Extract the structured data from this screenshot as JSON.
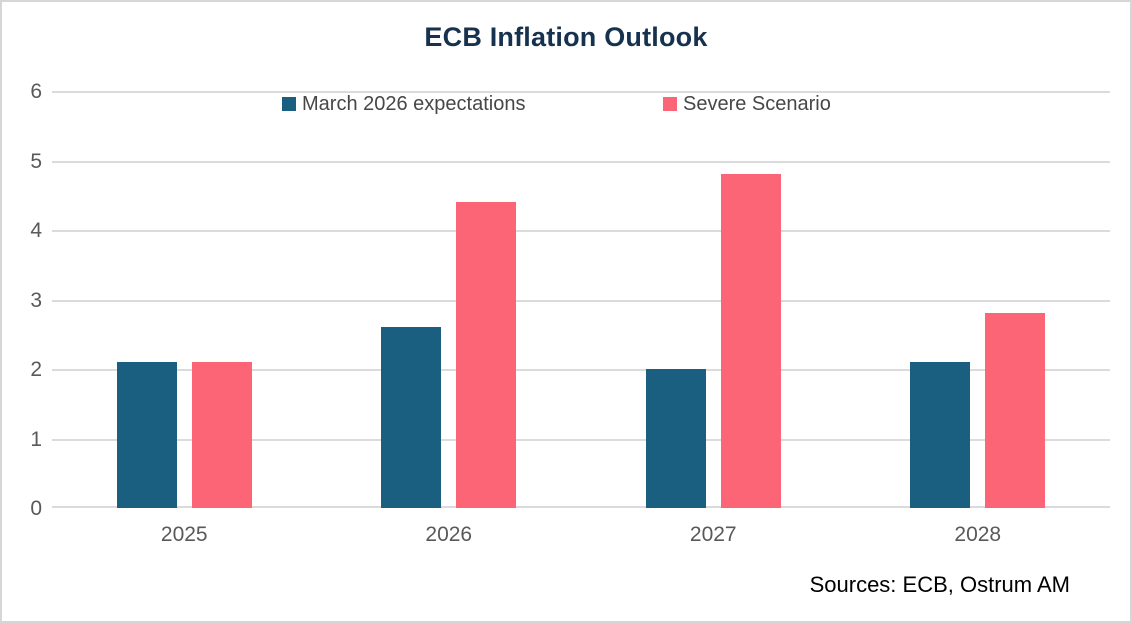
{
  "chart_data": {
    "type": "bar",
    "title": "ECB Inflation Outlook",
    "categories": [
      "2025",
      "2026",
      "2027",
      "2028"
    ],
    "series": [
      {
        "name": "March 2026 expectations",
        "color": "#1A5F80",
        "values": [
          2.1,
          2.6,
          2.0,
          2.1
        ]
      },
      {
        "name": "Severe Scenario",
        "color": "#FC6576",
        "values": [
          2.1,
          4.4,
          4.8,
          2.8
        ]
      }
    ],
    "yticks": [
      0,
      1,
      2,
      3,
      4,
      5,
      6
    ],
    "ylim": [
      0,
      6
    ],
    "xlabel": "",
    "ylabel": "",
    "grid": "horizontal",
    "legend_position": "top"
  },
  "source_note": "Sources: ECB, Ostrum AM",
  "colors": {
    "title_text": "#16324E",
    "axis_text": "#595959",
    "legend_text": "#474747",
    "gridline": "#DBDBDB",
    "source_text": "#000000",
    "figure_border": "#D6D6D6",
    "background": "#FFFFFF"
  }
}
